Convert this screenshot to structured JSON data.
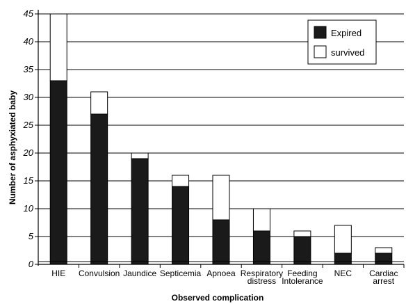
{
  "chart_data": {
    "type": "bar",
    "stacked": true,
    "categories": [
      [
        "HIE"
      ],
      [
        "Convulsion"
      ],
      [
        "Jaundice"
      ],
      [
        "Septicemia"
      ],
      [
        "Apnoea"
      ],
      [
        "Respiratory",
        "distress"
      ],
      [
        "Feeding",
        "Intolerance"
      ],
      [
        "NEC"
      ],
      [
        "Cardiac",
        "arrest"
      ]
    ],
    "series": [
      {
        "name": "Expired",
        "color": "#1a1a1a",
        "values": [
          33,
          27,
          19,
          14,
          8,
          6,
          5,
          2,
          2
        ]
      },
      {
        "name": "survived",
        "color": "#ffffff",
        "values": [
          12,
          4,
          1,
          2,
          8,
          4,
          1,
          5,
          1
        ]
      }
    ],
    "title": "",
    "xlabel": "Observed complication",
    "ylabel": "Number of asphyxiated  baby",
    "ylim": [
      0,
      45
    ],
    "yticks": [
      0,
      5,
      10,
      15,
      20,
      25,
      30,
      35,
      40,
      45
    ],
    "grid": true,
    "legend_position": "top-right"
  }
}
